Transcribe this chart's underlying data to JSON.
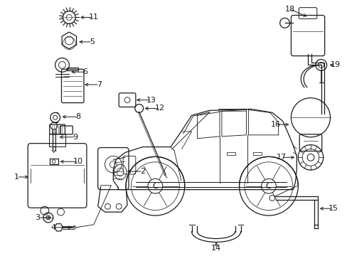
{
  "title": "",
  "background_color": "#ffffff",
  "line_color": "#1a1a1a",
  "fig_width": 4.89,
  "fig_height": 3.6,
  "dpi": 100,
  "font_size": 8.0
}
